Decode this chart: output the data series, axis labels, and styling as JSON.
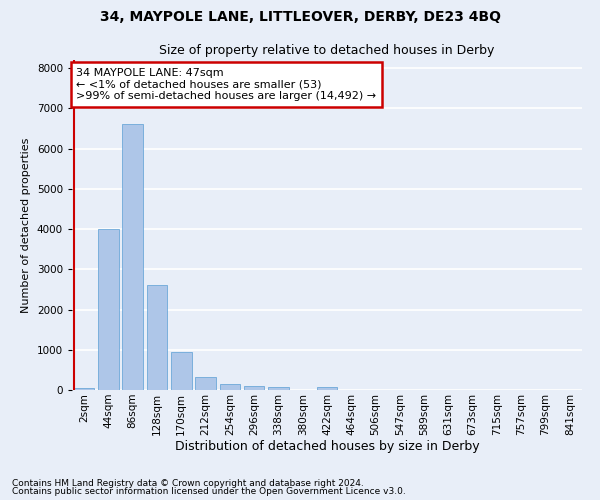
{
  "title": "34, MAYPOLE LANE, LITTLEOVER, DERBY, DE23 4BQ",
  "subtitle": "Size of property relative to detached houses in Derby",
  "xlabel": "Distribution of detached houses by size in Derby",
  "ylabel": "Number of detached properties",
  "categories": [
    "2sqm",
    "44sqm",
    "86sqm",
    "128sqm",
    "170sqm",
    "212sqm",
    "254sqm",
    "296sqm",
    "338sqm",
    "380sqm",
    "422sqm",
    "464sqm",
    "506sqm",
    "547sqm",
    "589sqm",
    "631sqm",
    "673sqm",
    "715sqm",
    "757sqm",
    "799sqm",
    "841sqm"
  ],
  "values": [
    53,
    4000,
    6600,
    2620,
    950,
    320,
    150,
    90,
    80,
    0,
    80,
    0,
    0,
    0,
    0,
    0,
    0,
    0,
    0,
    0,
    0
  ],
  "bar_color": "#aec6e8",
  "bar_edge_color": "#5a9fd4",
  "vline_color": "#cc0000",
  "annotation_box_text": "34 MAYPOLE LANE: 47sqm\n← <1% of detached houses are smaller (53)\n>99% of semi-detached houses are larger (14,492) →",
  "annotation_box_color": "#cc0000",
  "background_color": "#e8eef8",
  "grid_color": "#ffffff",
  "ylim": [
    0,
    8200
  ],
  "yticks": [
    0,
    1000,
    2000,
    3000,
    4000,
    5000,
    6000,
    7000,
    8000
  ],
  "footer_line1": "Contains HM Land Registry data © Crown copyright and database right 2024.",
  "footer_line2": "Contains public sector information licensed under the Open Government Licence v3.0.",
  "title_fontsize": 10,
  "subtitle_fontsize": 9,
  "xlabel_fontsize": 9,
  "ylabel_fontsize": 8,
  "tick_fontsize": 7.5,
  "annotation_fontsize": 8,
  "footer_fontsize": 6.5
}
